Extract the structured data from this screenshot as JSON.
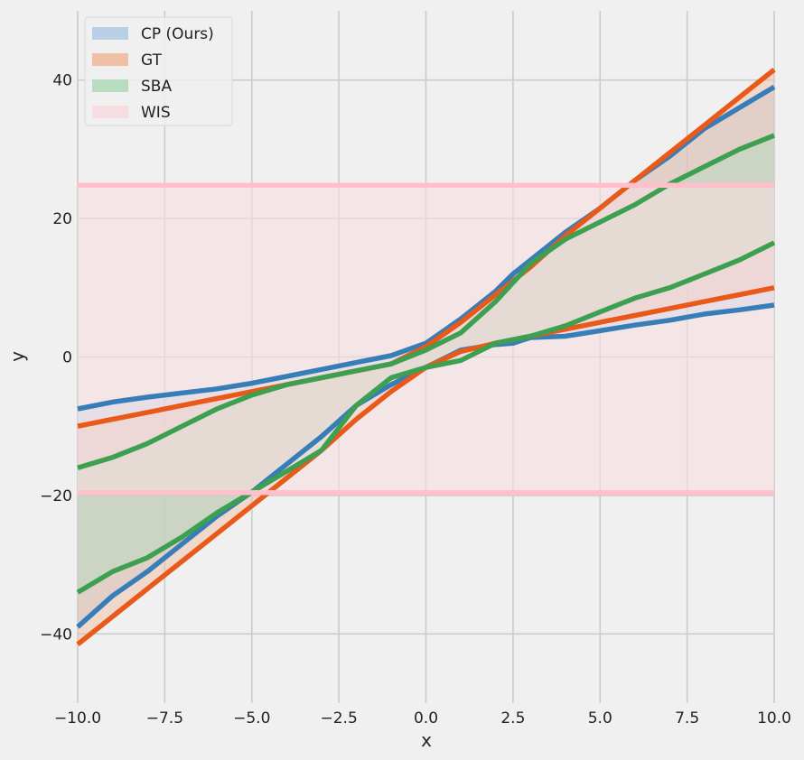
{
  "chart_data": {
    "type": "area",
    "xlabel": "x",
    "ylabel": "y",
    "xlim": [
      -10,
      10
    ],
    "ylim": [
      -50,
      50
    ],
    "xticks": [
      "−10.0",
      "−7.5",
      "−5.0",
      "−2.5",
      "0.0",
      "2.5",
      "5.0",
      "7.5",
      "10.0"
    ],
    "xtick_values": [
      -10,
      -7.5,
      -5,
      -2.5,
      0,
      2.5,
      5,
      7.5,
      10
    ],
    "yticks": [
      "−40",
      "−20",
      "0",
      "20",
      "40"
    ],
    "ytick_values": [
      -40,
      -20,
      0,
      20,
      40
    ],
    "grid": true,
    "legend_position": "top-left",
    "series": [
      {
        "name": "CP (Ours)",
        "color": "#377eb8",
        "fill_color": "#b9cfe6",
        "x": [
          -10,
          -9,
          -8,
          -7,
          -6,
          -5,
          -4,
          -3,
          -2,
          -1,
          0,
          1,
          2,
          2.5,
          3,
          4,
          5,
          6,
          7,
          8,
          9,
          10
        ],
        "upper": [
          -7.5,
          -6.5,
          -5.8,
          -5.2,
          -4.6,
          -3.8,
          -2.8,
          -1.8,
          -0.8,
          0.2,
          2,
          5.5,
          9.5,
          12,
          14,
          18,
          21.5,
          25.5,
          29,
          33,
          36,
          39
        ],
        "lower": [
          -39,
          -34.5,
          -31,
          -27,
          -23,
          -19.5,
          -15.5,
          -11.5,
          -7,
          -4,
          -1.5,
          1,
          1.8,
          2,
          2.8,
          3,
          3.8,
          4.6,
          5.3,
          6.2,
          6.8,
          7.5
        ]
      },
      {
        "name": "GT",
        "color": "#e8591a",
        "fill_color": "#efbfa6",
        "x": [
          -10,
          -9,
          -8,
          -7,
          -6,
          -5,
          -4,
          -3,
          -2,
          -1,
          0,
          1,
          2,
          3,
          4,
          5,
          6,
          7,
          8,
          9,
          10
        ],
        "upper": [
          -10,
          -9,
          -8,
          -7,
          -6,
          -5,
          -4,
          -3,
          -2,
          -1,
          1.5,
          5,
          9,
          13,
          17.5,
          21.5,
          25.5,
          29.5,
          33.5,
          37.5,
          41.5
        ],
        "lower": [
          -41.5,
          -37.5,
          -33.5,
          -29.5,
          -25.5,
          -21.5,
          -17.5,
          -13.5,
          -9,
          -5,
          -1.5,
          0.8,
          2,
          3,
          4,
          5,
          6,
          7,
          8,
          9,
          10
        ]
      },
      {
        "name": "SBA",
        "color": "#3ca050",
        "fill_color": "#b8dcc0",
        "x": [
          -10,
          -9,
          -8,
          -7,
          -6,
          -5,
          -4,
          -3,
          -2,
          -1,
          0,
          1,
          2,
          3,
          4,
          5,
          6,
          7,
          8,
          9,
          10
        ],
        "upper": [
          -16,
          -14.5,
          -12.5,
          -10,
          -7.5,
          -5.5,
          -4,
          -3,
          -2,
          -1,
          1,
          3.5,
          8,
          13.5,
          17,
          19.5,
          22,
          25,
          27.5,
          30,
          32
        ],
        "lower": [
          -34,
          -31,
          -29,
          -26,
          -22.5,
          -19.5,
          -16.5,
          -13.5,
          -7,
          -3,
          -1.5,
          -0.5,
          2,
          3,
          4.5,
          6.5,
          8.5,
          10,
          12,
          14,
          16.5
        ]
      },
      {
        "name": "WIS",
        "color": "#ffc0cb",
        "fill_color": "#f6dde1",
        "x": [
          -10,
          10
        ],
        "upper": [
          24.8,
          24.8
        ],
        "lower": [
          -19.6,
          -19.6
        ]
      }
    ]
  }
}
